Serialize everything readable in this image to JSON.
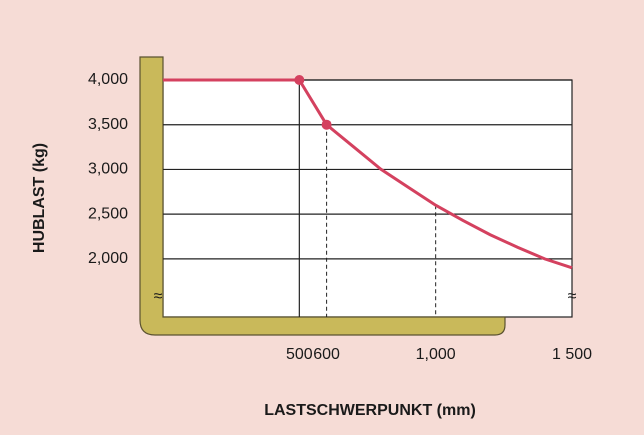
{
  "chart_data": {
    "type": "line",
    "x_label": "LASTSCHWERPUNKT (mm)",
    "y_label": "HUBLAST (kg)",
    "series": [
      {
        "color": "#d4415f",
        "x": [
          0,
          500,
          600,
          700,
          800,
          900,
          1000,
          1100,
          1200,
          1300,
          1400,
          1500
        ],
        "values": [
          4000,
          4000,
          3500,
          3250,
          3000,
          2800,
          2600,
          2430,
          2270,
          2130,
          2000,
          1900
        ]
      }
    ],
    "xlim": [
      0,
      1500
    ],
    "xticks": [
      500,
      600,
      {
        "value": 1000,
        "label": "1,000"
      },
      {
        "value": 1500,
        "label": "1 500"
      }
    ],
    "ylim": [
      1350,
      4000
    ],
    "yticks": [
      {
        "value": 2000,
        "label": "2,000"
      },
      {
        "value": 2500,
        "label": "2,500"
      },
      {
        "value": 3000,
        "label": "3,000"
      },
      {
        "value": 3500,
        "label": "3,500"
      },
      {
        "value": 4000,
        "label": "4,000"
      }
    ],
    "grid": true
  }
}
